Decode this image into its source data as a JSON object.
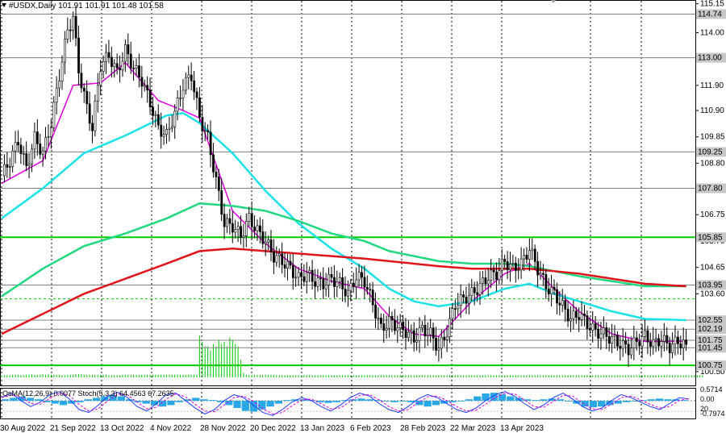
{
  "header": {
    "symbol_line": "#USDX,Daily  101.91 101.91 101.48 101.58",
    "oscillator_line": "OsMA(12,26,9) 0.0077  Stoch(5,3,3) 64.4563 67.2635"
  },
  "colors": {
    "background": "#ffffff",
    "ema_fast": "#e000e0",
    "ema_mid": "#19e3e8",
    "ema_slow": "#20d880",
    "ema_200": "#e0141a",
    "level_line": "#808080",
    "key_level": "#00cc00",
    "volume": "#00c800",
    "osma_hist": "#2aa8e6",
    "stoch_main": "#1e3cff",
    "stoch_signal": "#e000e0"
  },
  "chart_data": {
    "type": "candlestick",
    "title": "#USDX,Daily",
    "last_ohlc": {
      "open": 101.91,
      "high": 101.91,
      "low": 101.48,
      "close": 101.58
    },
    "ylim": [
      99.95,
      115.3
    ],
    "y_ticks": [
      115.15,
      114.0,
      112.95,
      111.9,
      110.9,
      109.85,
      108.8,
      107.75,
      106.75,
      105.7,
      104.65,
      103.6,
      102.55,
      101.5,
      100.5
    ],
    "marked_levels": [
      "114.74",
      "113.00",
      "109.25",
      "107.80",
      "105.85",
      "103.95",
      "102.55",
      "102.19",
      "101.75",
      "101.45",
      "100.75"
    ],
    "key_level_highlight": [
      "105.85",
      "100.75"
    ],
    "dashed_levels": [
      {
        "value": 103.4
      }
    ],
    "x_labels": [
      "30 Aug 2022",
      "21 Sep 2022",
      "13 Oct 2022",
      "4 Nov 2022",
      "28 Nov 2022",
      "20 Dec 2022",
      "13 Jan 2023",
      "6 Feb 2023",
      "28 Feb 2023",
      "22 Mar 2023",
      "13 Apr 2023"
    ],
    "close_series": {
      "name": "price",
      "points": [
        [
          0,
          108.3
        ],
        [
          3,
          108.9
        ],
        [
          6,
          109.7
        ],
        [
          9,
          108.6
        ],
        [
          12,
          109.8
        ],
        [
          15,
          109.2
        ],
        [
          18,
          110.4
        ],
        [
          21,
          112.3
        ],
        [
          24,
          114.1
        ],
        [
          26,
          114.6
        ],
        [
          28,
          112.5
        ],
        [
          31,
          111.0
        ],
        [
          33,
          110.2
        ],
        [
          36,
          112.7
        ],
        [
          39,
          113.1
        ],
        [
          42,
          112.4
        ],
        [
          45,
          113.3
        ],
        [
          48,
          112.6
        ],
        [
          51,
          112.1
        ],
        [
          54,
          111.2
        ],
        [
          57,
          110.2
        ],
        [
          60,
          109.9
        ],
        [
          63,
          110.8
        ],
        [
          66,
          111.9
        ],
        [
          69,
          112.3
        ],
        [
          72,
          110.6
        ],
        [
          75,
          109.8
        ],
        [
          78,
          108.1
        ],
        [
          81,
          106.4
        ],
        [
          84,
          106.3
        ],
        [
          87,
          105.9
        ],
        [
          90,
          106.6
        ],
        [
          93,
          106.1
        ],
        [
          96,
          105.7
        ],
        [
          99,
          105.1
        ],
        [
          102,
          104.9
        ],
        [
          105,
          104.6
        ],
        [
          108,
          104.2
        ],
        [
          111,
          104.4
        ],
        [
          114,
          104.1
        ],
        [
          117,
          104.0
        ],
        [
          120,
          104.2
        ],
        [
          123,
          104.0
        ],
        [
          126,
          103.6
        ],
        [
          129,
          104.3
        ],
        [
          132,
          104.1
        ],
        [
          135,
          103.2
        ],
        [
          138,
          102.2
        ],
        [
          141,
          102.5
        ],
        [
          144,
          102.3
        ],
        [
          147,
          102.1
        ],
        [
          150,
          101.8
        ],
        [
          153,
          102.2
        ],
        [
          156,
          102.0
        ],
        [
          159,
          101.4
        ],
        [
          162,
          102.1
        ],
        [
          165,
          103.2
        ],
        [
          168,
          103.4
        ],
        [
          171,
          103.6
        ],
        [
          174,
          103.9
        ],
        [
          177,
          104.3
        ],
        [
          180,
          104.4
        ],
        [
          183,
          104.9
        ],
        [
          186,
          104.6
        ],
        [
          189,
          104.8
        ],
        [
          192,
          105.4
        ],
        [
          195,
          104.6
        ],
        [
          198,
          103.9
        ],
        [
          201,
          103.6
        ],
        [
          204,
          103.1
        ],
        [
          207,
          102.6
        ],
        [
          210,
          102.8
        ],
        [
          213,
          102.4
        ],
        [
          216,
          102.1
        ],
        [
          219,
          102.0
        ],
        [
          222,
          101.8
        ],
        [
          225,
          101.6
        ],
        [
          228,
          101.4
        ],
        [
          231,
          101.7
        ],
        [
          234,
          101.9
        ],
        [
          237,
          101.6
        ],
        [
          240,
          101.8
        ],
        [
          243,
          101.5
        ],
        [
          246,
          101.7
        ],
        [
          249,
          101.58
        ]
      ]
    },
    "series": [
      {
        "name": "EMA fast",
        "points": [
          [
            0,
            108.0
          ],
          [
            15,
            108.9
          ],
          [
            26,
            111.9
          ],
          [
            36,
            112.0
          ],
          [
            45,
            112.8
          ],
          [
            57,
            111.3
          ],
          [
            66,
            110.9
          ],
          [
            72,
            110.6
          ],
          [
            84,
            106.9
          ],
          [
            96,
            105.6
          ],
          [
            108,
            104.6
          ],
          [
            120,
            104.1
          ],
          [
            132,
            103.8
          ],
          [
            141,
            102.7
          ],
          [
            150,
            102.0
          ],
          [
            159,
            101.9
          ],
          [
            171,
            103.3
          ],
          [
            183,
            104.4
          ],
          [
            192,
            104.8
          ],
          [
            201,
            103.8
          ],
          [
            210,
            102.9
          ],
          [
            222,
            102.0
          ],
          [
            234,
            101.7
          ],
          [
            249,
            101.7
          ]
        ]
      },
      {
        "name": "EMA mid",
        "points": [
          [
            0,
            106.6
          ],
          [
            15,
            107.8
          ],
          [
            30,
            109.2
          ],
          [
            45,
            109.9
          ],
          [
            60,
            110.7
          ],
          [
            66,
            110.8
          ],
          [
            72,
            110.4
          ],
          [
            84,
            109.2
          ],
          [
            96,
            107.7
          ],
          [
            108,
            106.4
          ],
          [
            120,
            105.4
          ],
          [
            132,
            104.6
          ],
          [
            141,
            103.8
          ],
          [
            150,
            103.3
          ],
          [
            159,
            103.1
          ],
          [
            171,
            103.3
          ],
          [
            183,
            103.8
          ],
          [
            192,
            104.0
          ],
          [
            201,
            103.6
          ],
          [
            210,
            103.3
          ],
          [
            222,
            102.9
          ],
          [
            234,
            102.6
          ],
          [
            249,
            102.55
          ]
        ]
      },
      {
        "name": "EMA slow",
        "points": [
          [
            0,
            103.5
          ],
          [
            15,
            104.6
          ],
          [
            30,
            105.5
          ],
          [
            45,
            106.0
          ],
          [
            60,
            106.6
          ],
          [
            72,
            107.2
          ],
          [
            84,
            107.1
          ],
          [
            96,
            106.9
          ],
          [
            108,
            106.5
          ],
          [
            120,
            106.0
          ],
          [
            132,
            105.7
          ],
          [
            141,
            105.3
          ],
          [
            150,
            105.1
          ],
          [
            159,
            104.9
          ],
          [
            171,
            104.8
          ],
          [
            183,
            104.8
          ],
          [
            192,
            104.7
          ],
          [
            201,
            104.5
          ],
          [
            210,
            104.3
          ],
          [
            222,
            104.1
          ],
          [
            234,
            103.9
          ],
          [
            249,
            103.9
          ]
        ]
      },
      {
        "name": "EMA 200",
        "points": [
          [
            0,
            102.0
          ],
          [
            15,
            102.8
          ],
          [
            30,
            103.6
          ],
          [
            45,
            104.2
          ],
          [
            60,
            104.8
          ],
          [
            72,
            105.3
          ],
          [
            84,
            105.4
          ],
          [
            96,
            105.3
          ],
          [
            108,
            105.2
          ],
          [
            120,
            105.1
          ],
          [
            132,
            105.0
          ],
          [
            141,
            104.9
          ],
          [
            150,
            104.8
          ],
          [
            159,
            104.7
          ],
          [
            171,
            104.6
          ],
          [
            183,
            104.6
          ],
          [
            192,
            104.6
          ],
          [
            201,
            104.5
          ],
          [
            210,
            104.4
          ],
          [
            222,
            104.2
          ],
          [
            234,
            104.0
          ],
          [
            249,
            103.9
          ]
        ]
      }
    ],
    "volume": {
      "name": "volume",
      "values": [
        0.05,
        0.05,
        0.05,
        0.05,
        0.06,
        0.06,
        0.06,
        0.05,
        0.05,
        0.06,
        0.06,
        0.07,
        0.06,
        0.06,
        0.06,
        0.07,
        0.06,
        0.07,
        0.06,
        0.06,
        0.06,
        0.06,
        0.05,
        0.05,
        0.06,
        0.06,
        0.06,
        0.07,
        0.07,
        0.07,
        0.06,
        0.06,
        0.06,
        0.06,
        0.06,
        0.06,
        0.06,
        0.06,
        0.06,
        0.05,
        0.05,
        0.05,
        0.05,
        0.05,
        0.06,
        0.06,
        0.06,
        0.06,
        0.06,
        0.06,
        0.06,
        0.06,
        0.06,
        0.06,
        0.06,
        0.06,
        0.06,
        0.06,
        0.06,
        0.06,
        0.06,
        0.06,
        0.06,
        0.06,
        0.06,
        0.06,
        0.06,
        0.06,
        0.06,
        0.06,
        0.06,
        0.06,
        0.95,
        0.8,
        0.7,
        0.7,
        0.6,
        0.75,
        0.7,
        0.85,
        0.75,
        0.8,
        0.7,
        0.9,
        0.85,
        0.75,
        0.7,
        0.4,
        0.1,
        0.06,
        0.06,
        0.06,
        0.06,
        0.06,
        0.06,
        0.06,
        0.06,
        0.06,
        0.06,
        0.06,
        0.05,
        0.05,
        0.05,
        0.05,
        0.05,
        0.05,
        0.05,
        0.05,
        0.05,
        0.05,
        0.05,
        0.05,
        0.05,
        0.05,
        0.05,
        0.05,
        0.05,
        0.05,
        0.05,
        0.05,
        0.05,
        0.05,
        0.05,
        0.05,
        0.05,
        0.05,
        0.05,
        0.05,
        0.05,
        0.05,
        0.05,
        0.05,
        0.05,
        0.05,
        0.05,
        0.05,
        0.05,
        0.05,
        0.05,
        0.05,
        0.05,
        0.05,
        0.05,
        0.05,
        0.05,
        0.05,
        0.05,
        0.05,
        0.05,
        0.05,
        0.05,
        0.05,
        0.05,
        0.05,
        0.05,
        0.05,
        0.05,
        0.05,
        0.05,
        0.05,
        0.05,
        0.05,
        0.05,
        0.05,
        0.05,
        0.05,
        0.05,
        0.05,
        0.05,
        0.05,
        0.05,
        0.05,
        0.05,
        0.05,
        0.05,
        0.05,
        0.05,
        0.05,
        0.05,
        0.05,
        0.05,
        0.05,
        0.05,
        0.05,
        0.05,
        0.05,
        0.05,
        0.05,
        0.05,
        0.05,
        0.05,
        0.05,
        0.05,
        0.05,
        0.05,
        0.05,
        0.05,
        0.05,
        0.05,
        0.05,
        0.05,
        0.05,
        0.05,
        0.05,
        0.05,
        0.05,
        0.05,
        0.05,
        0.05,
        0.05,
        0.05,
        0.05,
        0.05,
        0.05,
        0.05,
        0.05,
        0.05,
        0.05,
        0.05,
        0.05,
        0.05,
        0.05,
        0.05,
        0.05,
        0.05,
        0.05,
        0.05,
        0.05,
        0.05,
        0.05,
        0.05,
        0.05,
        0.05,
        0.05,
        0.05,
        0.05,
        0.05,
        0.05,
        0.05,
        0.05,
        0.05,
        0.05,
        0.05,
        0.05,
        0.05,
        0.05,
        0.05,
        0.05,
        0.05,
        0.05,
        0.05,
        0.05,
        0.05,
        0.05,
        0.05,
        0.05
      ]
    },
    "oscillator": {
      "title": "OsMA(12,26,9) 0.0077  Stoch(5,3,3) 64.4563 67.2635",
      "osma_value": 0.0077,
      "stoch_main": 64.4563,
      "stoch_signal": 67.2635,
      "y_labels": [
        "0.5714",
        "0.00",
        "20",
        "-0.7974"
      ],
      "osma_hist": [
        0.1,
        0.2,
        0.3,
        0.2,
        0.1,
        -0.1,
        -0.2,
        -0.3,
        -0.2,
        -0.1,
        0.1,
        0.2,
        0.3,
        0.4,
        0.3,
        0.1,
        -0.1,
        -0.2,
        -0.3,
        -0.4,
        -0.3,
        -0.1,
        0.1,
        0.2,
        0.1,
        0.05,
        -0.1,
        -0.3,
        -0.5,
        -0.7,
        -0.75,
        -0.6,
        -0.4,
        -0.2,
        0.05,
        0.1,
        0.1,
        0.05,
        -0.1,
        -0.15,
        -0.1,
        0.05,
        0.1,
        0.15,
        0.1,
        0.05,
        -0.05,
        -0.1,
        -0.05,
        -0.1,
        -0.3,
        -0.4,
        -0.3,
        -0.2,
        -0.1,
        -0.05,
        0.1,
        0.3,
        0.5,
        0.55,
        0.45,
        0.3,
        0.2,
        0.1,
        0.05,
        0.1,
        0.15,
        0.1,
        -0.05,
        -0.2,
        -0.4,
        -0.45,
        -0.4,
        -0.3,
        -0.2,
        -0.1,
        -0.05,
        0.05,
        0.1,
        0.15,
        0.1,
        0.1,
        0.05
      ],
      "stoch": [
        70,
        85,
        60,
        40,
        55,
        80,
        90,
        65,
        30,
        20,
        45,
        75,
        88,
        70,
        40,
        25,
        50,
        80,
        85,
        60,
        35,
        15,
        30,
        60,
        80,
        70,
        45,
        20,
        10,
        30,
        55,
        70,
        60,
        40,
        25,
        45,
        70,
        85,
        75,
        50,
        30,
        20,
        40,
        65,
        80,
        70,
        50,
        30,
        20,
        35,
        60,
        80,
        90,
        75,
        50,
        30,
        45,
        70,
        85,
        65,
        40,
        25,
        35,
        60,
        80,
        70,
        55,
        40,
        30,
        50,
        70,
        65
      ]
    }
  }
}
